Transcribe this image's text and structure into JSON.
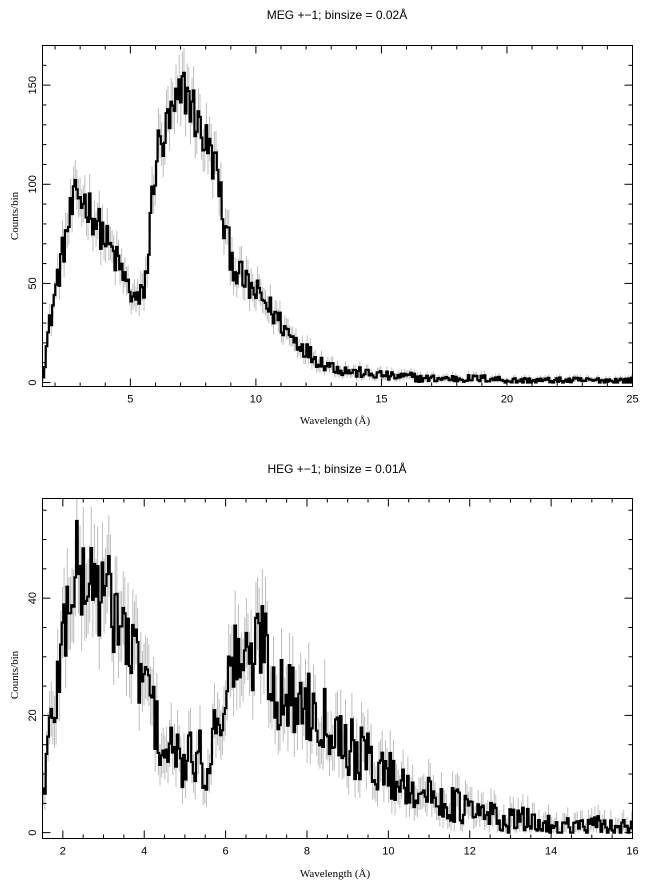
{
  "chart_data": [
    {
      "type": "line",
      "title": "MEG +−1; binsize = 0.02Å",
      "xlabel": "Wavelength (Å)",
      "ylabel": "Counts/bin",
      "xlim": [
        1.5,
        25
      ],
      "ylim": [
        -2,
        170
      ],
      "xticks": [
        5,
        10,
        15,
        20,
        25
      ],
      "yticks": [
        0,
        50,
        100,
        150
      ],
      "grid": false,
      "series": [
        {
          "style": "histogram-step-with-error-bars",
          "x": [
            1.5,
            1.7,
            1.9,
            2.1,
            2.3,
            2.5,
            2.7,
            2.9,
            3.1,
            3.3,
            3.5,
            3.7,
            3.9,
            4.1,
            4.3,
            4.5,
            4.7,
            4.9,
            5.1,
            5.3,
            5.5,
            5.7,
            5.9,
            6.1,
            6.3,
            6.5,
            6.7,
            6.9,
            7.1,
            7.3,
            7.5,
            7.7,
            7.9,
            8.1,
            8.3,
            8.5,
            8.7,
            8.9,
            9.1,
            9.3,
            9.5,
            9.7,
            9.9,
            10.1,
            10.3,
            10.5,
            10.7,
            10.9,
            11.1,
            11.3,
            11.5,
            11.7,
            11.9,
            12.1,
            12.3,
            12.5,
            12.7,
            12.9,
            13.1,
            13.3,
            13.5,
            13.7,
            13.9,
            14.1,
            14.3,
            14.5,
            14.7,
            14.9,
            15.1,
            15.3,
            15.5,
            15.7,
            15.9,
            16.1,
            16.3,
            16.5,
            16.7,
            16.9,
            17.1,
            17.5,
            18,
            18.5,
            19,
            19.5,
            20,
            20.5,
            21,
            21.5,
            22,
            22.5,
            23,
            23.5,
            24,
            24.5,
            25
          ],
          "y": [
            2,
            22,
            38,
            52,
            65,
            78,
            88,
            95,
            92,
            90,
            85,
            80,
            75,
            70,
            65,
            60,
            55,
            48,
            44,
            40,
            45,
            60,
            100,
            118,
            120,
            130,
            135,
            140,
            148,
            145,
            138,
            130,
            125,
            118,
            112,
            105,
            80,
            70,
            60,
            55,
            52,
            48,
            46,
            44,
            42,
            38,
            35,
            32,
            28,
            25,
            22,
            20,
            18,
            15,
            13,
            11,
            10,
            9,
            8,
            7,
            6,
            6,
            5,
            5,
            5,
            4,
            4,
            4,
            4,
            3,
            3,
            3,
            3,
            3,
            3,
            2,
            2,
            2,
            2,
            2,
            2,
            2,
            2,
            2,
            1,
            1,
            1,
            1,
            1,
            1,
            1,
            1,
            1,
            1,
            1
          ]
        }
      ]
    },
    {
      "type": "line",
      "title": "HEG +−1; binsize = 0.01Å",
      "xlabel": "Wavelength (Å)",
      "ylabel": "Counts/bin",
      "xlim": [
        1.5,
        16
      ],
      "ylim": [
        -1,
        57
      ],
      "xticks": [
        2,
        4,
        6,
        8,
        10,
        12,
        14,
        16
      ],
      "yticks": [
        0,
        20,
        40
      ],
      "grid": false,
      "series": [
        {
          "style": "histogram-step-with-error-bars",
          "x": [
            1.5,
            1.6,
            1.7,
            1.8,
            1.9,
            2,
            2.1,
            2.2,
            2.3,
            2.4,
            2.5,
            2.6,
            2.7,
            2.8,
            2.9,
            3,
            3.1,
            3.2,
            3.3,
            3.4,
            3.5,
            3.6,
            3.7,
            3.8,
            3.9,
            4,
            4.1,
            4.2,
            4.3,
            4.4,
            4.5,
            4.6,
            4.7,
            4.8,
            4.9,
            5,
            5.1,
            5.2,
            5.3,
            5.4,
            5.5,
            5.6,
            5.7,
            5.8,
            5.9,
            6,
            6.1,
            6.2,
            6.3,
            6.4,
            6.5,
            6.6,
            6.7,
            6.8,
            6.9,
            7,
            7.1,
            7.2,
            7.3,
            7.4,
            7.5,
            7.6,
            7.7,
            7.8,
            7.9,
            8,
            8.2,
            8.4,
            8.6,
            8.8,
            9,
            9.2,
            9.4,
            9.6,
            9.8,
            10,
            10.2,
            10.4,
            10.6,
            10.8,
            11,
            11.2,
            11.4,
            11.6,
            11.8,
            12,
            12.2,
            12.4,
            12.6,
            12.8,
            13,
            13.5,
            14,
            14.5,
            15,
            15.5,
            16
          ],
          "y": [
            6,
            12,
            18,
            22,
            27,
            33,
            38,
            42,
            45,
            44,
            43,
            42,
            44,
            43,
            41,
            40,
            40,
            39,
            38,
            36,
            34,
            32,
            30,
            29,
            28,
            26,
            24,
            22,
            18,
            15,
            14,
            13,
            14,
            13,
            12,
            11,
            12,
            14,
            12,
            13,
            10,
            13,
            16,
            20,
            22,
            24,
            26,
            29,
            31,
            30,
            28,
            29,
            30,
            32,
            35,
            33,
            26,
            25,
            24,
            24,
            23,
            23,
            22,
            22,
            23,
            22,
            21,
            20,
            19,
            17,
            15,
            14,
            13,
            12,
            11,
            10,
            9,
            8,
            8,
            7,
            6,
            6,
            5,
            5,
            4,
            4,
            3,
            3,
            3,
            2,
            2,
            2,
            1,
            1,
            1,
            1,
            1
          ]
        }
      ]
    }
  ]
}
